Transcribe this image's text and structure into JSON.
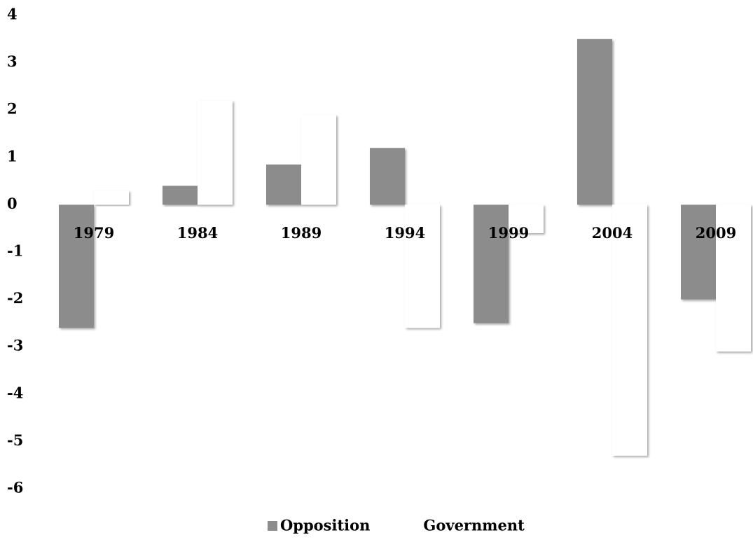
{
  "chart_data": {
    "type": "bar",
    "categories": [
      "1979",
      "1984",
      "1989",
      "1994",
      "1999",
      "2004",
      "2009"
    ],
    "series": [
      {
        "name": "Opposition",
        "color": "#8c8c8c",
        "values": [
          -2.6,
          0.4,
          0.85,
          1.2,
          -2.5,
          3.5,
          -2.0
        ]
      },
      {
        "name": "Government",
        "color": "#ffffff",
        "values": [
          0.3,
          2.2,
          1.9,
          -2.6,
          -0.6,
          -5.3,
          -3.1
        ]
      }
    ],
    "ylim": [
      -6,
      4
    ],
    "yticks": [
      4,
      3,
      2,
      1,
      0,
      -1,
      -2,
      -3,
      -4,
      -5,
      -6
    ],
    "grid": false
  }
}
